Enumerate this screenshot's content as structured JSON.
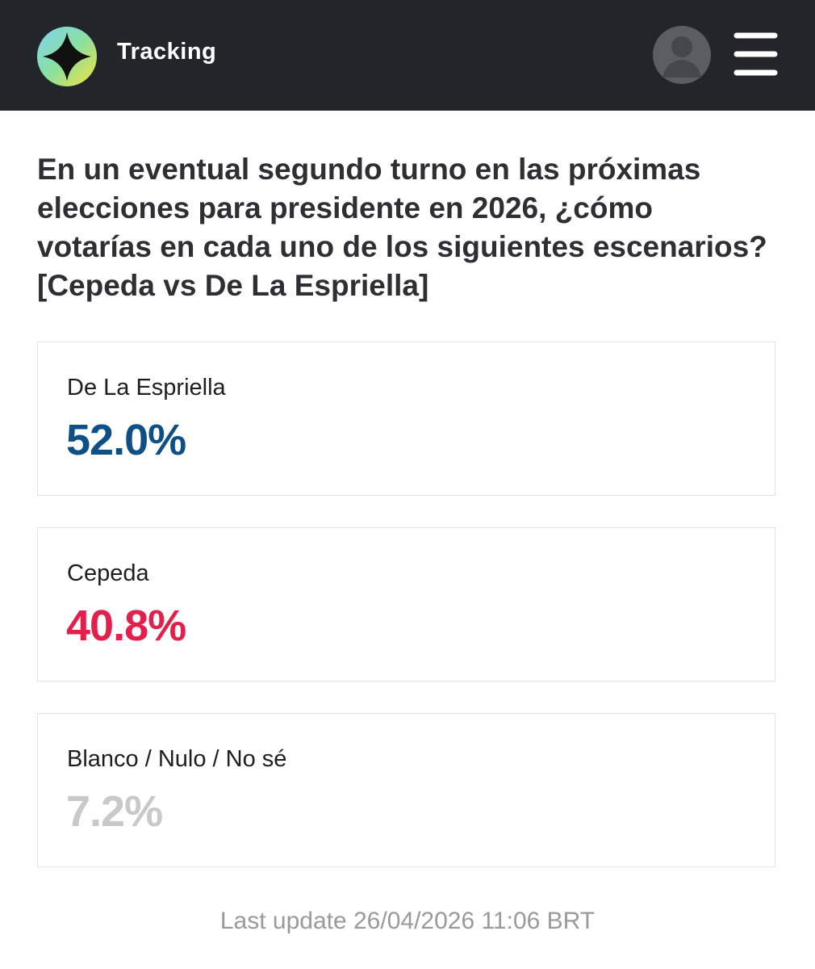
{
  "header": {
    "title": "Tracking"
  },
  "question": {
    "lines": [
      "En un eventual segundo turno en las próximas",
      "elecciones para presidente en 2026, ¿cómo",
      "votarías en cada uno de los siguientes escenarios?",
      "[Cepeda vs De La Espriella]"
    ]
  },
  "cards": [
    {
      "label": "De La Espriella",
      "value": "52.0%",
      "color": "#0d4f86"
    },
    {
      "label": "Cepeda",
      "value": "40.8%",
      "color": "#e2204b"
    },
    {
      "label": "Blanco / Nulo / No sé",
      "value": "7.2%",
      "color": "#c9c9c9"
    }
  ],
  "footer": {
    "text": "Last update 26/04/2026 11:06 BRT"
  }
}
